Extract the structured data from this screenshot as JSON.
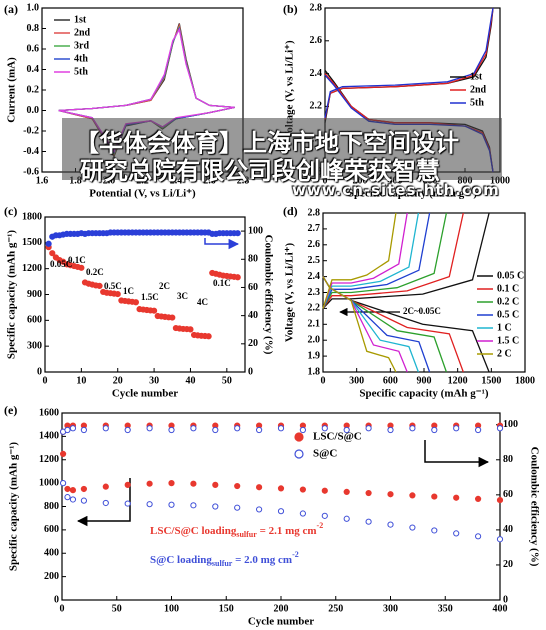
{
  "chart_data": [
    {
      "type": "line",
      "label": "(a)",
      "xlabel": "Potential (V, vs Li/Li⁺)",
      "ylabel": "Current (mA)",
      "xlim": [
        1.6,
        2.8
      ],
      "xticks": [
        1.6,
        1.8,
        {
          "value": 2,
          "label": "2.0"
        },
        2.2,
        2.4,
        2.6,
        2.8
      ],
      "ylim": [
        -0.6,
        1.0
      ],
      "yticks": [
        -0.6,
        -0.4,
        -0.2,
        {
          "value": 0,
          "label": "0.0"
        },
        0.2,
        0.4,
        0.6,
        0.8,
        {
          "value": 1,
          "label": "1.0"
        }
      ],
      "legend": "upper left",
      "x": [
        1.7,
        1.9,
        2.1,
        2.25,
        2.33,
        2.38,
        2.42,
        2.46,
        2.52,
        2.6,
        2.75,
        2.6,
        2.4,
        2.32,
        2.25,
        2.1,
        2.03,
        1.98,
        1.9,
        1.7
      ],
      "series": [
        {
          "name": "1st",
          "color": "#333333",
          "values": [
            0,
            0.02,
            0.05,
            0.1,
            0.3,
            0.65,
            0.85,
            0.5,
            0.12,
            0.05,
            0.03,
            -0.02,
            -0.08,
            -0.18,
            -0.1,
            -0.15,
            -0.45,
            -0.3,
            -0.08,
            0
          ]
        },
        {
          "name": "2nd",
          "color": "#e0504f",
          "values": [
            0,
            0.02,
            0.05,
            0.1,
            0.32,
            0.66,
            0.83,
            0.48,
            0.12,
            0.05,
            0.03,
            -0.02,
            -0.08,
            -0.17,
            -0.1,
            -0.14,
            -0.43,
            -0.29,
            -0.08,
            0
          ]
        },
        {
          "name": "3rd",
          "color": "#4caf50",
          "values": [
            0,
            0.02,
            0.05,
            0.11,
            0.33,
            0.66,
            0.81,
            0.47,
            0.12,
            0.05,
            0.03,
            -0.02,
            -0.08,
            -0.17,
            -0.1,
            -0.14,
            -0.42,
            -0.28,
            -0.07,
            0
          ]
        },
        {
          "name": "4th",
          "color": "#3050d0",
          "values": [
            0,
            0.02,
            0.05,
            0.11,
            0.34,
            0.67,
            0.8,
            0.46,
            0.12,
            0.05,
            0.03,
            -0.02,
            -0.08,
            -0.16,
            -0.1,
            -0.14,
            -0.41,
            -0.28,
            -0.07,
            0
          ]
        },
        {
          "name": "5th",
          "color": "#e040e0",
          "values": [
            0,
            0.02,
            0.05,
            0.11,
            0.35,
            0.68,
            0.79,
            0.45,
            0.12,
            0.05,
            0.03,
            -0.02,
            -0.07,
            -0.16,
            -0.1,
            -0.13,
            -0.4,
            -0.27,
            -0.07,
            0
          ]
        }
      ]
    },
    {
      "type": "line",
      "label": "(b)",
      "xlabel": "Specific capacity (mAh g⁻¹)",
      "ylabel": "Voltage (V, vs Li/Li⁺)",
      "xlim": [
        0,
        1000
      ],
      "xticks": [
        0,
        200,
        400,
        600,
        800,
        1000
      ],
      "ylim": [
        1.8,
        2.8
      ],
      "yticks": [
        1.8,
        {
          "value": 2,
          "label": "2.0"
        },
        2.2,
        2.4,
        2.6,
        2.8
      ],
      "legend": "center right",
      "x": [
        0,
        30,
        100,
        400,
        700,
        850,
        920,
        950,
        960,
        null,
        0,
        50,
        150,
        250,
        400,
        600,
        800,
        900,
        940,
        960
      ],
      "series": [
        {
          "name": "1st",
          "color": "#111111",
          "values": [
            2.1,
            2.28,
            2.31,
            2.32,
            2.34,
            2.38,
            2.5,
            2.7,
            2.8,
            null,
            2.42,
            2.35,
            2.2,
            2.12,
            2.1,
            2.1,
            2.09,
            2.05,
            1.95,
            1.8
          ]
        },
        {
          "name": "2nd",
          "color": "#e02020",
          "values": [
            2.12,
            2.28,
            2.31,
            2.32,
            2.34,
            2.39,
            2.52,
            2.72,
            2.8,
            null,
            2.4,
            2.34,
            2.2,
            2.12,
            2.1,
            2.1,
            2.08,
            2.04,
            1.94,
            1.8
          ]
        },
        {
          "name": "5th",
          "color": "#2030d0",
          "values": [
            2.13,
            2.29,
            2.32,
            2.33,
            2.35,
            2.4,
            2.54,
            2.74,
            2.8,
            null,
            2.39,
            2.33,
            2.19,
            2.11,
            2.09,
            2.09,
            2.08,
            2.03,
            1.93,
            1.8
          ]
        }
      ]
    },
    {
      "type": "scatter",
      "label": "(c)",
      "xlabel": "Cycle number",
      "ylabel": "Specific capacity (mAh g⁻¹)",
      "y2label": "Coulombic efficiency (%)",
      "xlim": [
        0,
        55
      ],
      "xticks": [
        0,
        10,
        20,
        30,
        40,
        50
      ],
      "ylim": [
        0,
        1800
      ],
      "yticks": [
        0,
        300,
        600,
        900,
        1200,
        1500,
        1800
      ],
      "y2lim": [
        0,
        110
      ],
      "y2ticks": [
        0,
        20,
        40,
        60,
        80,
        100
      ],
      "annotations": [
        "0.05C",
        "0.1C",
        "0.2C",
        "0.5C",
        "1C",
        "1.5C",
        "2C",
        "3C",
        "4C",
        "0.1C"
      ],
      "x": [
        1,
        2,
        3,
        4,
        5,
        6,
        7,
        8,
        9,
        10,
        11,
        12,
        13,
        14,
        15,
        16,
        17,
        18,
        19,
        20,
        21,
        22,
        23,
        24,
        25,
        26,
        27,
        28,
        29,
        30,
        31,
        32,
        33,
        34,
        35,
        36,
        37,
        38,
        39,
        40,
        41,
        42,
        43,
        44,
        45,
        46,
        47,
        48,
        49,
        50,
        51,
        52,
        53
      ],
      "series": [
        {
          "color": "#e8382f",
          "values": [
            1450,
            1380,
            1330,
            1300,
            1280,
            1250,
            1240,
            1230,
            1220,
            1210,
            1040,
            1025,
            1015,
            1005,
            1000,
            930,
            920,
            915,
            910,
            905,
            830,
            825,
            820,
            815,
            810,
            730,
            725,
            720,
            715,
            712,
            650,
            645,
            640,
            635,
            632,
            510,
            505,
            500,
            498,
            495,
            430,
            425,
            420,
            418,
            415,
            1150,
            1140,
            1130,
            1120,
            1115,
            1110,
            1105,
            1100
          ]
        },
        {
          "color": "#2b3fd8",
          "axis": "y2",
          "values": [
            91,
            96,
            97,
            97,
            97.5,
            98,
            98,
            98,
            98,
            98.5,
            98,
            98.5,
            98.5,
            98.5,
            98.5,
            98.5,
            98.5,
            99,
            99,
            99,
            99,
            99,
            99,
            99,
            99,
            99,
            99,
            99,
            99,
            99,
            99,
            99,
            99,
            99,
            99,
            99,
            99,
            99,
            99,
            99,
            99,
            99,
            99,
            99,
            99,
            98,
            98,
            98.5,
            98.5,
            98.5,
            98.5,
            98.5,
            98.5
          ]
        }
      ]
    },
    {
      "type": "line",
      "label": "(d)",
      "xlabel": "Specific capacity (mAh g⁻¹)",
      "ylabel": "Voltage (V, vs Li/Li⁺)",
      "xlim": [
        0,
        1800
      ],
      "xticks": [
        0,
        300,
        600,
        900,
        1200,
        1500,
        1800
      ],
      "ylim": [
        1.8,
        2.8
      ],
      "yticks": [
        1.8,
        1.9,
        {
          "value": 2,
          "label": "2.0"
        },
        2.1,
        2.2,
        2.3,
        2.4,
        2.5,
        2.6,
        2.7,
        2.8
      ],
      "legend": "lower right",
      "annotations": [
        "2C~0.05C"
      ],
      "series": [
        {
          "name": "0.05 C",
          "color": "#111111",
          "x": [
            0,
            80,
            250,
            888,
            1332,
            1480,
            null,
            0,
            60,
            250,
            888,
            1332,
            1480
          ],
          "values": [
            2.2,
            2.26,
            2.26,
            2.29,
            2.38,
            2.8,
            null,
            2.4,
            2.33,
            2.25,
            2.1,
            2.06,
            1.8
          ]
        },
        {
          "name": "0.1 C",
          "color": "#e02020",
          "x": [
            0,
            80,
            250,
            750,
            1125,
            1250,
            null,
            0,
            60,
            250,
            750,
            1125,
            1250
          ],
          "values": [
            2.2,
            2.28,
            2.28,
            2.31,
            2.4,
            2.8,
            null,
            2.4,
            2.33,
            2.25,
            2.08,
            2.04,
            1.8
          ]
        },
        {
          "name": "0.2 C",
          "color": "#2ca02c",
          "x": [
            0,
            80,
            250,
            660,
            990,
            1100,
            null,
            0,
            60,
            250,
            660,
            990,
            1100
          ],
          "values": [
            2.2,
            2.3,
            2.3,
            2.33,
            2.42,
            2.8,
            null,
            2.4,
            2.33,
            2.25,
            2.06,
            2.02,
            1.8
          ]
        },
        {
          "name": "0.5 C",
          "color": "#1f3fd0",
          "x": [
            0,
            80,
            250,
            570,
            855,
            950,
            null,
            0,
            60,
            250,
            570,
            855,
            950
          ],
          "values": [
            2.2,
            2.32,
            2.32,
            2.35,
            2.44,
            2.8,
            null,
            2.4,
            2.33,
            2.25,
            2.03,
            1.99,
            1.8
          ]
        },
        {
          "name": "1 C",
          "color": "#1fb5d0",
          "x": [
            0,
            80,
            250,
            510,
            765,
            850,
            null,
            0,
            60,
            250,
            510,
            765,
            850
          ],
          "values": [
            2.2,
            2.34,
            2.34,
            2.37,
            2.46,
            2.8,
            null,
            2.4,
            2.33,
            2.25,
            2.0,
            1.96,
            1.8
          ]
        },
        {
          "name": "1.5 C",
          "color": "#d020d0",
          "x": [
            0,
            80,
            250,
            450,
            675,
            750,
            null,
            0,
            60,
            250,
            450,
            675,
            750
          ],
          "values": [
            2.2,
            2.36,
            2.36,
            2.39,
            2.48,
            2.8,
            null,
            2.4,
            2.33,
            2.25,
            1.97,
            1.93,
            1.8
          ]
        },
        {
          "name": "2 C",
          "color": "#a89a00",
          "x": [
            0,
            80,
            250,
            390,
            585,
            650,
            null,
            0,
            60,
            250,
            390,
            585,
            650
          ],
          "values": [
            2.2,
            2.38,
            2.38,
            2.41,
            2.5,
            2.8,
            null,
            2.4,
            2.33,
            2.25,
            1.93,
            1.89,
            1.8
          ]
        }
      ]
    },
    {
      "type": "scatter",
      "label": "(e)",
      "xlabel": "Cycle number",
      "ylabel": "Specific capacity (mAh g⁻¹)",
      "y2label": "Coulombic efficiency (%)",
      "xlim": [
        0,
        400
      ],
      "xticks": [
        0,
        50,
        100,
        150,
        200,
        250,
        300,
        350,
        400
      ],
      "ylim": [
        0,
        1600
      ],
      "yticks": [
        0,
        200,
        400,
        600,
        800,
        1000,
        1200,
        1400,
        1600
      ],
      "y2lim": [
        0,
        106.7
      ],
      "y2ticks": [
        0,
        20,
        40,
        60,
        80,
        100
      ],
      "legend": "upper center",
      "annotations": [
        [
          "LSC/S@C loading",
          "sulfur",
          " = 2.1 mg cm",
          "-2"
        ],
        [
          "S@C loading",
          "sulfur",
          " = 2.0 mg cm",
          "-2"
        ]
      ],
      "x": [
        1,
        5,
        10,
        20,
        40,
        60,
        80,
        100,
        120,
        140,
        160,
        180,
        200,
        220,
        240,
        260,
        280,
        300,
        320,
        340,
        360,
        380,
        400
      ],
      "series": [
        {
          "name": "LSC/S@C",
          "color": "#e8382f",
          "values": [
            1250,
            950,
            940,
            950,
            970,
            985,
            995,
            1000,
            995,
            985,
            975,
            965,
            955,
            945,
            935,
            925,
            915,
            905,
            895,
            885,
            875,
            865,
            855
          ]
        },
        {
          "name": "S@C",
          "color": "#4050d8",
          "hollow": true,
          "values": [
            1000,
            880,
            860,
            850,
            830,
            825,
            820,
            815,
            810,
            800,
            790,
            775,
            760,
            740,
            720,
            695,
            670,
            645,
            620,
            595,
            570,
            545,
            520
          ]
        },
        {
          "color": "#e8382f",
          "axis": "y2",
          "values": [
            96,
            99.5,
            99.5,
            99.5,
            99.5,
            99.5,
            99.5,
            99.5,
            99.5,
            99.5,
            99.5,
            99.5,
            99.5,
            99.5,
            99.5,
            99.5,
            99.5,
            99.5,
            99.5,
            99.5,
            99.5,
            99.5,
            99.5
          ]
        },
        {
          "color": "#4050d8",
          "axis": "y2",
          "hollow": true,
          "values": [
            96,
            97,
            98,
            97,
            98,
            97,
            98,
            97,
            98,
            97,
            98,
            97,
            98,
            97,
            98,
            97,
            98,
            97,
            98,
            97,
            98,
            97,
            98
          ]
        }
      ]
    }
  ],
  "watermark": {
    "line1": "【华体会体育】上海市地下空间设计",
    "line2": "研究总院有限公司段创峰荣获智慧",
    "url": "www.cn-sites-hth.com"
  }
}
